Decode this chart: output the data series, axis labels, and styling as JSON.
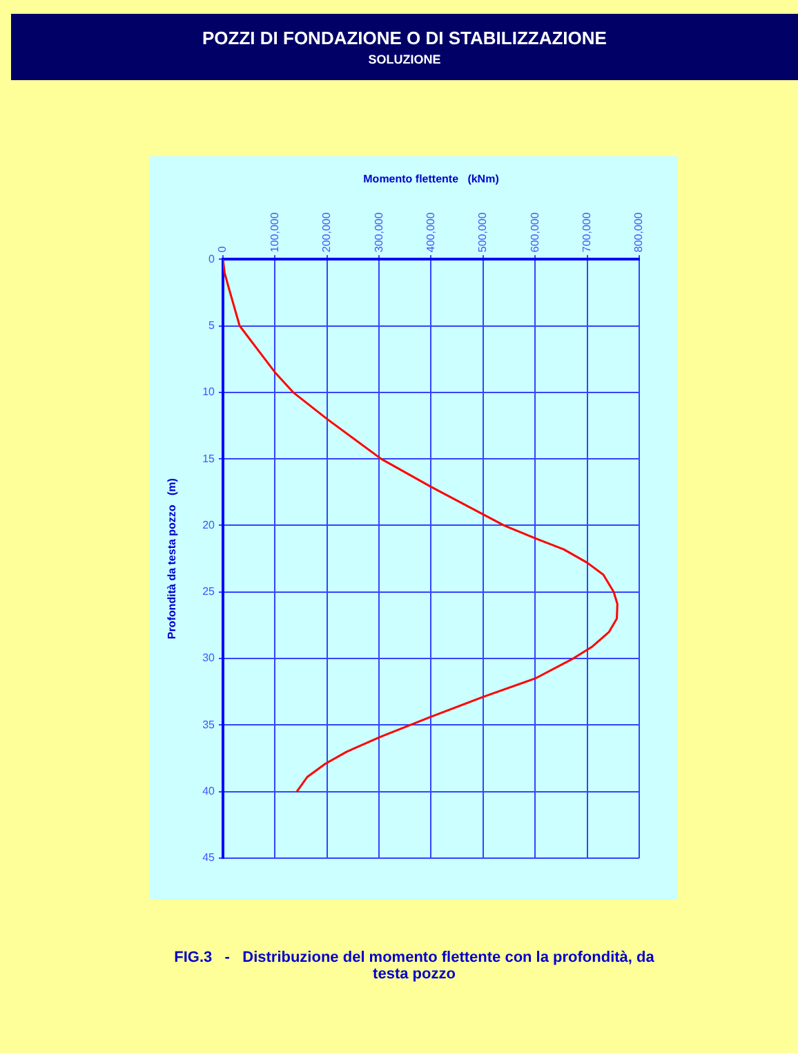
{
  "chart_data": {
    "type": "line",
    "title": "POZZI DI FONDAZIONE O DI STABILIZZAZIONE",
    "subtitle": "SOLUZIONE",
    "xlabel": "Momento flettente   (kNm)",
    "ylabel": "Profondità da testa pozzo   (m)",
    "annotations": [
      "FIG.3   -   Distribuzione del momento flettente con la profondità, da testa pozzo"
    ],
    "x": [
      0,
      3000,
      10000,
      32000,
      100000,
      135000,
      200000,
      304000,
      400000,
      540000,
      602000,
      655000,
      700000,
      731000,
      751000,
      758000,
      757000,
      742000,
      710000,
      673000,
      600000,
      499000,
      398000,
      302000,
      238000,
      197000,
      162000,
      142000
    ],
    "values": [
      0,
      1,
      2,
      5,
      8.5,
      10,
      12,
      15,
      17.1,
      20,
      21,
      21.8,
      22.8,
      23.7,
      25,
      25.9,
      27,
      28,
      29.1,
      30,
      31.5,
      32.9,
      34.4,
      35.9,
      37,
      37.9,
      38.9,
      40
    ],
    "color": "#ff0000",
    "marker": "none",
    "line_style": "solid",
    "xlim": [
      0,
      800000
    ],
    "xticks": [
      0,
      {
        "value": 100000,
        "label": "100,000"
      },
      {
        "value": 200000,
        "label": "200,000"
      },
      {
        "value": 300000,
        "label": "300,000"
      },
      {
        "value": 400000,
        "label": "400,000"
      },
      {
        "value": 500000,
        "label": "500,000"
      },
      {
        "value": 600000,
        "label": "600,000"
      },
      {
        "value": 700000,
        "label": "700,000"
      },
      {
        "value": 800000,
        "label": "800,000"
      }
    ],
    "ylim": [
      45,
      0
    ],
    "yticks": [
      0,
      5,
      10,
      15,
      20,
      25,
      30,
      35,
      40,
      45
    ],
    "grid": true,
    "legend": false
  }
}
